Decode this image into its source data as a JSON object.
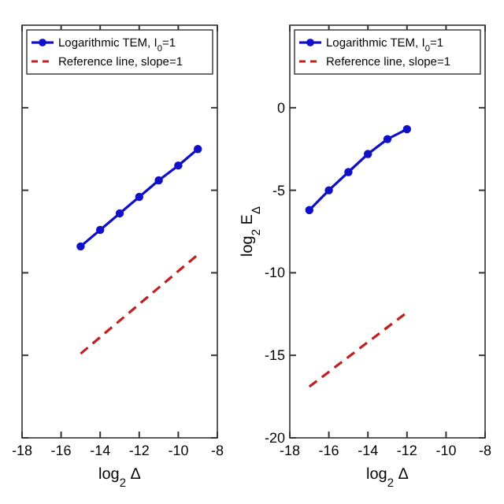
{
  "chart_data": [
    {
      "type": "line",
      "xlabel": "log$_{2}$ Δ",
      "xlim": [
        -18,
        -8
      ],
      "xticks": [
        -18,
        -16,
        -14,
        -12,
        -10,
        -8
      ],
      "ylim": [
        -20,
        5
      ],
      "yticks": [
        -20,
        -15,
        -10,
        -5,
        0
      ],
      "tick_labels": "x",
      "legend": "top left",
      "series": [
        {
          "name": "Logarithmic TEM, I$_{0}$=1",
          "color": "#1010c8",
          "marker": "circle",
          "line_style": "solid",
          "x": [
            -15,
            -14,
            -13,
            -12,
            -11,
            -10,
            -9
          ],
          "values": [
            -8.4,
            -7.4,
            -6.4,
            -5.4,
            -4.4,
            -3.5,
            -2.5
          ]
        },
        {
          "name": "Reference line, slope=1",
          "color": "#c02020",
          "marker": "none",
          "line_style": "dashed",
          "x": [
            -15,
            -9
          ],
          "values": [
            -14.9,
            -8.9
          ]
        }
      ]
    },
    {
      "type": "line",
      "xlabel": "log$_{2}$ Δ",
      "ylabel": "log$_{2}$ E$_{Δ}$",
      "xlim": [
        -18,
        -8
      ],
      "xticks": [
        -18,
        -16,
        -14,
        -12,
        -10,
        -8
      ],
      "ylim": [
        -20,
        5
      ],
      "yticks": [
        -20,
        -15,
        -10,
        -5,
        0
      ],
      "legend": "top left",
      "series": [
        {
          "name": "Logarithmic TEM, I$_{0}$=1",
          "color": "#1010c8",
          "marker": "circle",
          "line_style": "solid",
          "x": [
            -17,
            -16,
            -15,
            -14,
            -13,
            -12
          ],
          "values": [
            -6.2,
            -5.0,
            -3.9,
            -2.8,
            -1.9,
            -1.3
          ]
        },
        {
          "name": "Reference line, slope=1",
          "color": "#c02020",
          "marker": "none",
          "line_style": "dashed",
          "x": [
            -17,
            -12
          ],
          "values": [
            -16.9,
            -12.4
          ]
        }
      ]
    }
  ]
}
